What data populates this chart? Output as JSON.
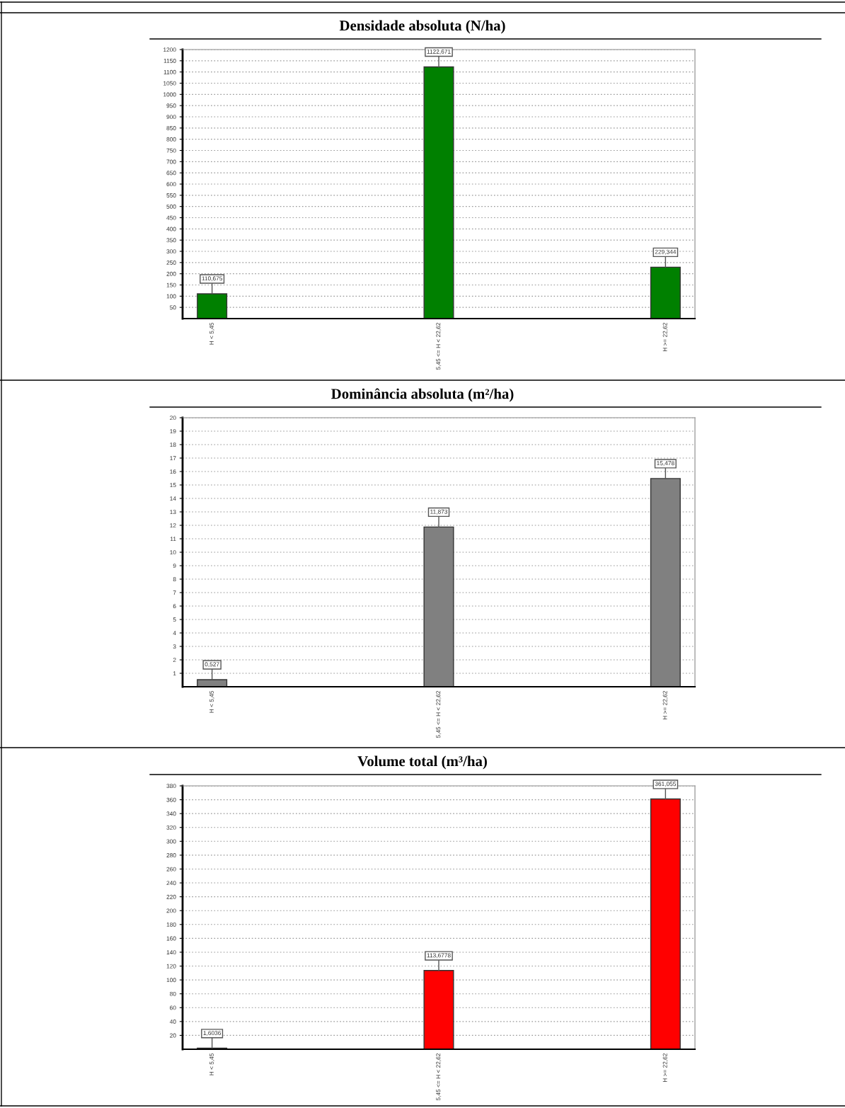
{
  "chart_data": [
    {
      "type": "bar",
      "title": "Densidade absoluta (N/ha)",
      "categories": [
        "H < 5,45",
        "5,45 <= H < 22,62",
        "H >= 22,62"
      ],
      "values": [
        110.675,
        1122.671,
        229.344
      ],
      "value_labels": [
        "110,675",
        "1122,671",
        "229,344"
      ],
      "color": "#008000",
      "ylim": [
        0,
        1200
      ],
      "yticks": [
        50,
        100,
        150,
        200,
        250,
        300,
        350,
        400,
        450,
        500,
        550,
        600,
        650,
        700,
        750,
        800,
        850,
        900,
        950,
        1000,
        1050,
        1100,
        1150,
        1200
      ],
      "grid": "y"
    },
    {
      "type": "bar",
      "title": "Dominância absoluta (m²/ha)",
      "categories": [
        "H < 5,45",
        "5,45 <= H < 22,62",
        "H >= 22,62"
      ],
      "values": [
        0.527,
        11.873,
        15.478
      ],
      "value_labels": [
        "0,527",
        "11,873",
        "15,478"
      ],
      "color": "#808080",
      "ylim": [
        0,
        20
      ],
      "yticks": [
        1,
        2,
        3,
        4,
        5,
        6,
        7,
        8,
        9,
        10,
        11,
        12,
        13,
        14,
        15,
        16,
        17,
        18,
        19,
        20
      ],
      "grid": "y"
    },
    {
      "type": "bar",
      "title": "Volume total (m³/ha)",
      "categories": [
        "H < 5,45",
        "5,45 <= H < 22,62",
        "H >= 22,62"
      ],
      "values": [
        1.6036,
        113.6778,
        361.055
      ],
      "value_labels": [
        "1,6036",
        "113,6778",
        "361,055"
      ],
      "color": "#ff0000",
      "ylim": [
        0,
        380
      ],
      "yticks": [
        20,
        40,
        60,
        80,
        100,
        120,
        140,
        160,
        180,
        200,
        220,
        240,
        260,
        280,
        300,
        320,
        340,
        360,
        380
      ],
      "grid": "y"
    }
  ]
}
